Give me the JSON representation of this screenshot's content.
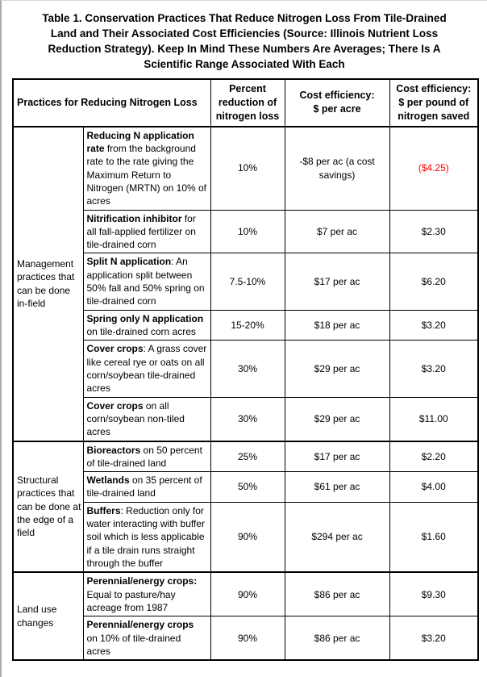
{
  "title": "Table 1. Conservation Practices That Reduce Nitrogen Loss From Tile-Drained\nLand and Their Associated Cost Efficiencies (Source: Illinois Nutrient Loss\nReduction Strategy). Keep In Mind These Numbers Are Averages; There Is A\nScientific Range Associated With Each",
  "colors": {
    "text": "#000000",
    "border": "#000000",
    "negative_cost": "#ff0000"
  },
  "table": {
    "headers": {
      "practices": "Practices for Reducing Nitrogen Loss",
      "percent": "Percent\nreduction of\nnitrogen loss",
      "cost_acre": "Cost efficiency:\n$ per acre",
      "cost_pound": "Cost efficiency:\n$ per pound of\nnitrogen saved"
    },
    "groups": [
      {
        "category": "Management practices that can be done in-field",
        "rows": [
          {
            "practice_bold": "Reducing N application rate",
            "practice_rest": " from the background rate to the rate giving the Maximum Return to Nitrogen (MRTN) on 10% of acres",
            "percent": "10%",
            "cost_acre": "-$8 per ac (a cost savings)",
            "cost_pound": "($4.25)",
            "cost_pound_red": true
          },
          {
            "practice_bold": "Nitrification inhibitor",
            "practice_rest": " for all fall-applied fertilizer on tile-drained corn",
            "percent": "10%",
            "cost_acre": "$7 per ac",
            "cost_pound": "$2.30",
            "cost_pound_red": false
          },
          {
            "practice_bold": "Split N application",
            "practice_rest": ": An application split between 50% fall and 50% spring on tile-drained corn",
            "percent": "7.5-10%",
            "cost_acre": "$17 per ac",
            "cost_pound": "$6.20",
            "cost_pound_red": false
          },
          {
            "practice_bold": "Spring only N application",
            "practice_rest": " on tile-drained corn acres",
            "percent": "15-20%",
            "cost_acre": "$18 per ac",
            "cost_pound": "$3.20",
            "cost_pound_red": false
          },
          {
            "practice_bold": "Cover crops",
            "practice_rest": ": A grass cover like cereal rye or oats on all corn/soybean tile-drained acres",
            "percent": "30%",
            "cost_acre": "$29 per ac",
            "cost_pound": "$3.20",
            "cost_pound_red": false
          },
          {
            "practice_bold": "Cover crops",
            "practice_rest": " on all corn/soybean non-tiled acres",
            "percent": "30%",
            "cost_acre": "$29 per ac",
            "cost_pound": "$11.00",
            "cost_pound_red": false
          }
        ]
      },
      {
        "category": "Structural practices that can be done at the edge of a field",
        "rows": [
          {
            "practice_bold": "Bioreactors",
            "practice_rest": " on 50 percent of tile-drained land",
            "percent": "25%",
            "cost_acre": "$17 per ac",
            "cost_pound": "$2.20",
            "cost_pound_red": false
          },
          {
            "practice_bold": "Wetlands",
            "practice_rest": " on 35 percent of tile-drained land",
            "percent": "50%",
            "cost_acre": "$61 per ac",
            "cost_pound": "$4.00",
            "cost_pound_red": false
          },
          {
            "practice_bold": "Buffers",
            "practice_rest": ": Reduction only for water interacting with buffer soil which is less applicable if a tile drain runs straight through the buffer",
            "percent": "90%",
            "cost_acre": "$294 per ac",
            "cost_pound": "$1.60",
            "cost_pound_red": false
          }
        ]
      },
      {
        "category": "Land use changes",
        "rows": [
          {
            "practice_bold": "Perennial/energy crops:",
            "practice_rest": " Equal to pasture/hay acreage from 1987",
            "percent": "90%",
            "cost_acre": "$86 per ac",
            "cost_pound": "$9.30",
            "cost_pound_red": false
          },
          {
            "practice_bold": "Perennial/energy crops",
            "practice_rest": " on 10% of tile-drained acres",
            "percent": "90%",
            "cost_acre": "$86 per ac",
            "cost_pound": "$3.20",
            "cost_pound_red": false
          }
        ]
      }
    ]
  }
}
